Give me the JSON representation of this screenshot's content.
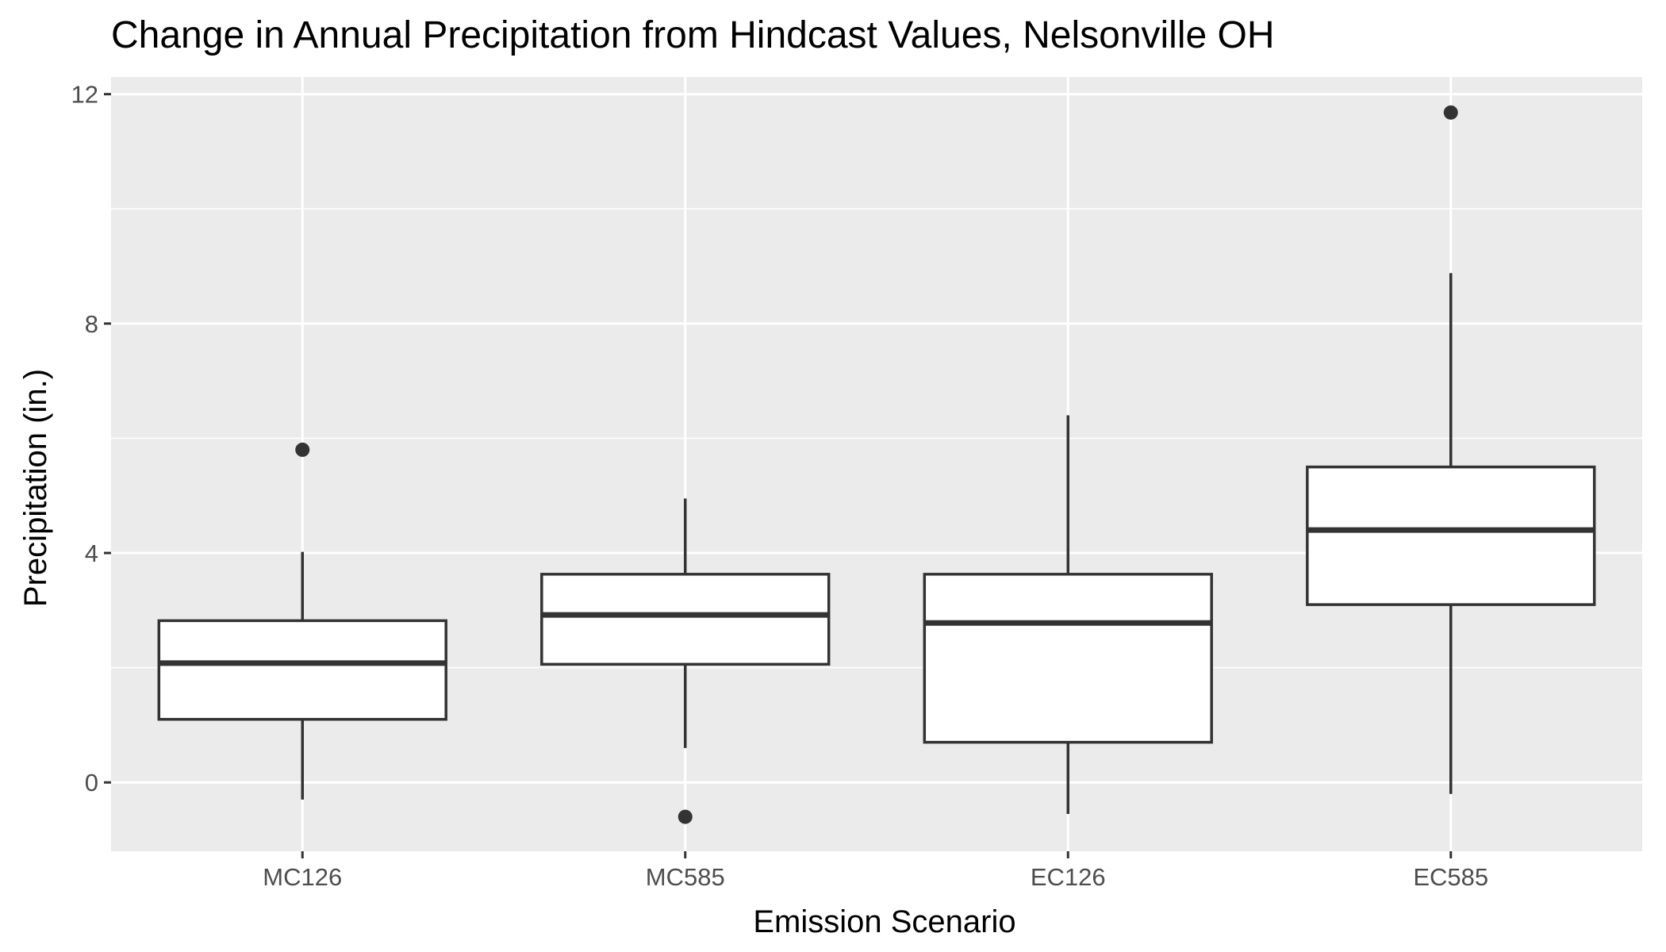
{
  "chart_data": {
    "type": "box",
    "title": "Change in Annual Precipitation from Hindcast Values, Nelsonville OH",
    "xlabel": "Emission Scenario",
    "ylabel": "Precipitation (in.)",
    "categories": [
      "MC126",
      "MC585",
      "EC126",
      "EC585"
    ],
    "ylim": [
      -1.2,
      12.3
    ],
    "yticks": [
      0,
      4,
      8,
      12
    ],
    "grid": true,
    "legend": "none",
    "boxes": [
      {
        "category": "MC126",
        "lower_whisker": -0.3,
        "q1": 1.1,
        "median": 2.08,
        "q3": 2.82,
        "upper_whisker": 4.02,
        "outliers": [
          5.8
        ]
      },
      {
        "category": "MC585",
        "lower_whisker": 0.6,
        "q1": 2.06,
        "median": 2.92,
        "q3": 3.63,
        "upper_whisker": 4.95,
        "outliers": [
          -0.6
        ]
      },
      {
        "category": "EC126",
        "lower_whisker": -0.55,
        "q1": 0.7,
        "median": 2.78,
        "q3": 3.63,
        "upper_whisker": 6.4,
        "outliers": []
      },
      {
        "category": "EC585",
        "lower_whisker": -0.2,
        "q1": 3.1,
        "median": 4.4,
        "q3": 5.5,
        "upper_whisker": 8.88,
        "outliers": [
          11.68
        ]
      }
    ],
    "colors": {
      "panel": "#ebebeb",
      "grid": "#ffffff",
      "box_fill": "#ffffff",
      "box_line": "#333333",
      "tick": "#333333"
    }
  }
}
